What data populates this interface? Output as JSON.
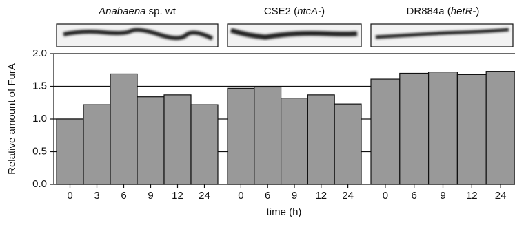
{
  "chart_data": {
    "type": "bar",
    "ylabel": "Relative amount of FurA",
    "xlabel": "time (h)",
    "ylim": [
      0,
      2
    ],
    "yticks": [
      {
        "value": 0,
        "label": "0.0"
      },
      {
        "value": 0.5,
        "label": "0.5"
      },
      {
        "value": 1,
        "label": "1.0"
      },
      {
        "value": 1.5,
        "label": "1.5"
      },
      {
        "value": 2,
        "label": "2.0"
      }
    ],
    "grid": true,
    "color": "#999999",
    "groups": [
      {
        "label": [
          {
            "text": "Anabaena",
            "italic": true
          },
          {
            "text": " sp. wt",
            "italic": false
          }
        ],
        "categories": [
          "0",
          "3",
          "6",
          "9",
          "12",
          "24"
        ],
        "values": [
          1.0,
          1.22,
          1.69,
          1.34,
          1.37,
          1.22
        ]
      },
      {
        "label": [
          {
            "text": "CSE2 (",
            "italic": false
          },
          {
            "text": "ntcA",
            "italic": true
          },
          {
            "text": "-)",
            "italic": false
          }
        ],
        "categories": [
          "0",
          "6",
          "9",
          "12",
          "24"
        ],
        "values": [
          1.47,
          1.49,
          1.32,
          1.37,
          1.23
        ]
      },
      {
        "label": [
          {
            "text": "DR884a (",
            "italic": false
          },
          {
            "text": "hetR",
            "italic": true
          },
          {
            "text": "-)",
            "italic": false
          }
        ],
        "categories": [
          "0",
          "6",
          "9",
          "12",
          "24"
        ],
        "values": [
          1.61,
          1.7,
          1.72,
          1.68,
          1.73
        ]
      }
    ]
  }
}
